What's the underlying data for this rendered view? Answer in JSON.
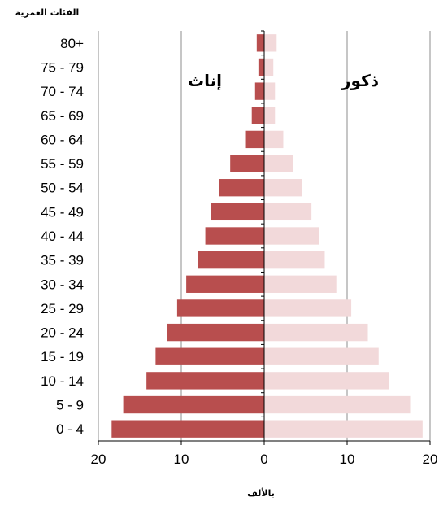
{
  "chart_data": {
    "type": "bar",
    "orientation": "horizontal-population-pyramid",
    "title": "الفئات العمرية",
    "xlabel": "بالألف",
    "ylabel": "",
    "categories": [
      "0 - 4",
      "5 - 9",
      "10 - 14",
      "15 - 19",
      "20 - 24",
      "25 - 29",
      "30 - 34",
      "35 - 39",
      "40 - 44",
      "45 - 49",
      "50 - 54",
      "55 - 59",
      "60 - 64",
      "65 - 69",
      "70 - 74",
      "75 - 79",
      "80+"
    ],
    "series": [
      {
        "name": "إناث",
        "side": "left",
        "color": "#b84e4e",
        "values": [
          18.4,
          17.0,
          14.2,
          13.1,
          11.7,
          10.5,
          9.4,
          8.0,
          7.1,
          6.4,
          5.4,
          4.1,
          2.3,
          1.5,
          1.1,
          0.7,
          0.9
        ]
      },
      {
        "name": "ذكور",
        "side": "right",
        "color": "#f2d9da",
        "values": [
          19.1,
          17.6,
          15.0,
          13.8,
          12.5,
          10.5,
          8.7,
          7.3,
          6.6,
          5.7,
          4.6,
          3.5,
          2.3,
          1.3,
          1.3,
          1.1,
          1.5
        ]
      }
    ],
    "xlim": [
      -20,
      20
    ],
    "xticks": [
      20,
      10,
      0,
      10,
      20
    ],
    "grid": true
  }
}
